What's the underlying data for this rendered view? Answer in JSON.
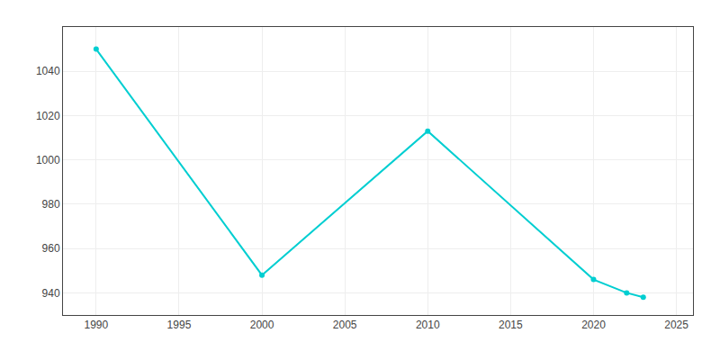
{
  "chart_data": {
    "type": "line",
    "x": [
      1990,
      2000,
      2010,
      2020,
      2022,
      2023
    ],
    "values": [
      1050,
      948,
      1013,
      946,
      940,
      938
    ],
    "color": "#00CED1",
    "marker": "circle",
    "xlim": [
      1988,
      2026
    ],
    "ylim": [
      930,
      1060
    ],
    "xticks": [
      1990,
      1995,
      2000,
      2005,
      2010,
      2015,
      2020,
      2025
    ],
    "yticks": [
      940,
      960,
      980,
      1000,
      1020,
      1040
    ],
    "grid": true
  }
}
